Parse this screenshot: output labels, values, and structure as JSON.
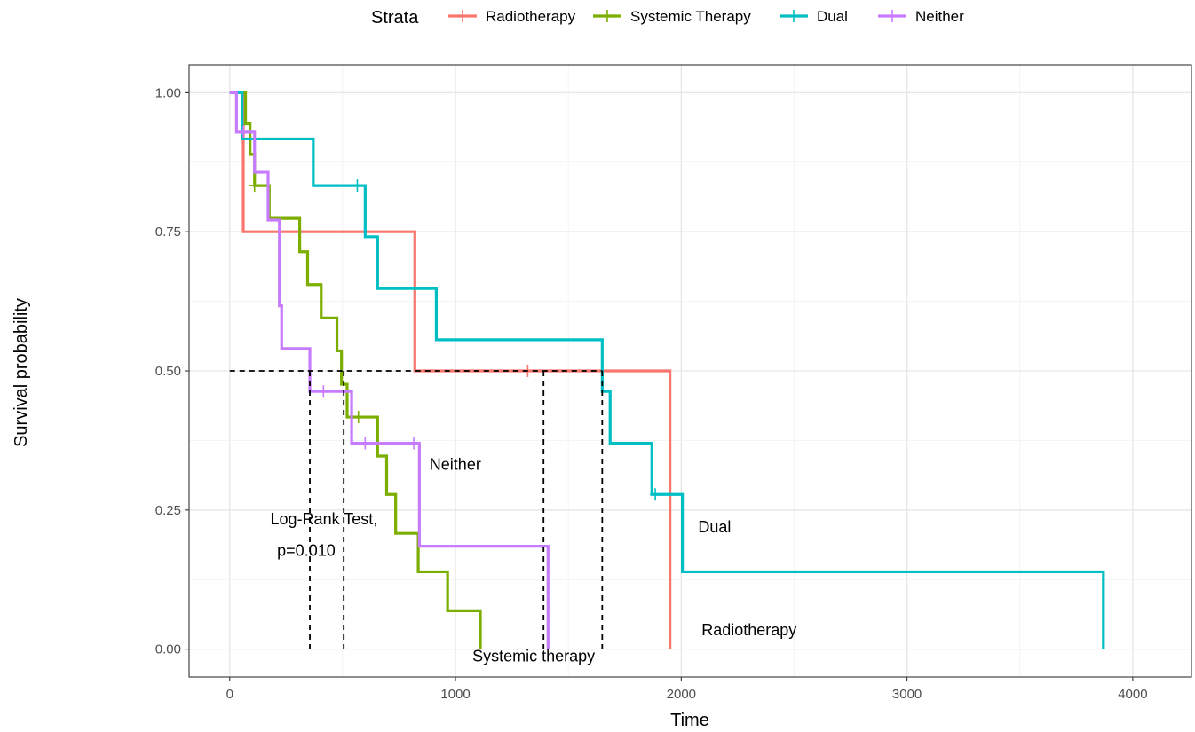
{
  "chart_data": {
    "type": "line",
    "subtype": "kaplan-meier",
    "title": "",
    "xlabel": "Time",
    "ylabel": "Survival probability",
    "xlim": [
      -180,
      4260
    ],
    "ylim": [
      -0.05,
      1.05
    ],
    "xticks": [
      0,
      1000,
      2000,
      3000,
      4000
    ],
    "xtick_labels": [
      "0",
      "1000",
      "2000",
      "3000",
      "4000"
    ],
    "yticks": [
      0,
      0.25,
      0.5,
      0.75,
      1.0
    ],
    "ytick_labels": [
      "0.00",
      "0.25",
      "0.50",
      "0.75",
      "1.00"
    ],
    "grid": true,
    "legend": {
      "title": "Strata",
      "position": "top",
      "entries": [
        "Radiotherapy",
        "Systemic Therapy",
        "Dual",
        "Neither"
      ]
    },
    "series": [
      {
        "name": "Radiotherapy",
        "color": "#F8766D",
        "steps": [
          [
            0,
            1.0
          ],
          [
            60,
            0.75
          ],
          [
            820,
            0.5
          ],
          [
            1950,
            0.0
          ]
        ],
        "end_x": 1950,
        "censors": [
          [
            1320,
            0.5
          ]
        ]
      },
      {
        "name": "Systemic Therapy",
        "color": "#7CAE00",
        "steps": [
          [
            0,
            1.0
          ],
          [
            70,
            0.944
          ],
          [
            90,
            0.889
          ],
          [
            110,
            0.833
          ],
          [
            175,
            0.774
          ],
          [
            310,
            0.714
          ],
          [
            345,
            0.655
          ],
          [
            405,
            0.595
          ],
          [
            475,
            0.536
          ],
          [
            495,
            0.476
          ],
          [
            520,
            0.417
          ],
          [
            655,
            0.347
          ],
          [
            695,
            0.278
          ],
          [
            735,
            0.208
          ],
          [
            835,
            0.139
          ],
          [
            965,
            0.069
          ],
          [
            1110,
            0.0
          ]
        ],
        "end_x": 1110,
        "censors": [
          [
            110,
            0.833
          ],
          [
            570,
            0.417
          ]
        ]
      },
      {
        "name": "Dual",
        "color": "#00BFC4",
        "steps": [
          [
            0,
            1.0
          ],
          [
            55,
            0.917
          ],
          [
            370,
            0.833
          ],
          [
            600,
            0.741
          ],
          [
            655,
            0.648
          ],
          [
            915,
            0.556
          ],
          [
            1650,
            0.463
          ],
          [
            1685,
            0.37
          ],
          [
            1870,
            0.278
          ],
          [
            2005,
            0.139
          ],
          [
            3870,
            0.0
          ]
        ],
        "end_x": 3870,
        "censors": [
          [
            565,
            0.833
          ],
          [
            1885,
            0.278
          ]
        ]
      },
      {
        "name": "Neither",
        "color": "#C77CFF",
        "steps": [
          [
            0,
            1.0
          ],
          [
            30,
            0.929
          ],
          [
            110,
            0.857
          ],
          [
            170,
            0.771
          ],
          [
            220,
            0.617
          ],
          [
            230,
            0.54
          ],
          [
            355,
            0.463
          ],
          [
            540,
            0.37
          ],
          [
            840,
            0.185
          ],
          [
            1410,
            0.0
          ]
        ],
        "end_x": 1410,
        "censors": [
          [
            60,
            0.929
          ],
          [
            415,
            0.463
          ],
          [
            600,
            0.37
          ],
          [
            815,
            0.37
          ]
        ]
      }
    ],
    "median_lines": {
      "y": 0.5,
      "x_start": 0,
      "x_end": 1650,
      "medians_x": [
        355,
        505,
        1390,
        1650
      ]
    },
    "annotations": [
      {
        "text": "Log-Rank Test,",
        "x": 180,
        "y": 0.224
      },
      {
        "text": "p=0.010",
        "x": 210,
        "y": 0.168
      },
      {
        "text": "Neither",
        "x": 885,
        "y": 0.322
      },
      {
        "text": "Dual",
        "x": 2075,
        "y": 0.21
      },
      {
        "text": "Radiotherapy",
        "x": 2090,
        "y": 0.025
      },
      {
        "text": "Systemic therapy",
        "x": 1075,
        "y": -0.022
      }
    ]
  }
}
